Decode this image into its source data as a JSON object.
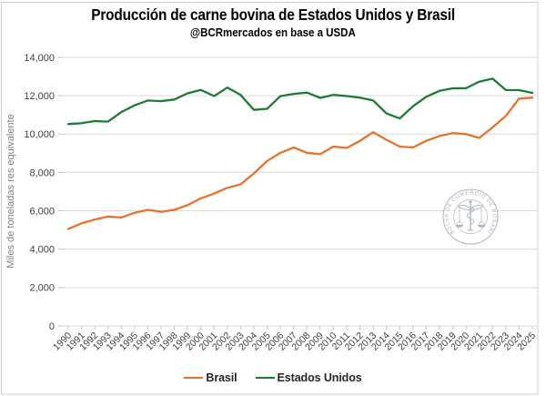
{
  "header": {
    "title": "Producción de carne bovina de Estados Unidos y Brasil",
    "subtitle": "@BCRmercados en base a USDA"
  },
  "watermark": {
    "name": "bolsa-de-comercio-de-rosario-seal",
    "text": "BOLSA DE COMERCIO DE ROSARIO",
    "color": "#9AA3B2"
  },
  "colors": {
    "grid": "#D9D9D9",
    "tick": "#C3C3C3",
    "axis_text": "#404040",
    "ylabel_text": "#7F7F7F",
    "frame_border": "#CBCFD4",
    "legend_text": "#262626"
  },
  "chart_data": {
    "type": "line",
    "title": "Producción de carne bovina de Estados Unidos y Brasil",
    "subtitle": "@BCRmercados en base a USDA",
    "xlabel": "",
    "ylabel": "Miles de toneladas res equivalente",
    "ylim": [
      0,
      14000
    ],
    "ytick_step": 2000,
    "grid": "horizontal-only",
    "legend_position": "bottom-center",
    "x": [
      1990,
      1991,
      1992,
      1993,
      1994,
      1995,
      1996,
      1997,
      1998,
      1999,
      2000,
      2001,
      2002,
      2003,
      2004,
      2005,
      2006,
      2007,
      2008,
      2009,
      2010,
      2011,
      2012,
      2013,
      2014,
      2015,
      2016,
      2017,
      2018,
      2019,
      2020,
      2021,
      2022,
      2023,
      2024,
      2025
    ],
    "series": [
      {
        "name": "Brasil",
        "color": "#E4732C",
        "values": [
          5050,
          5350,
          5550,
          5700,
          5650,
          5900,
          6050,
          5950,
          6050,
          6300,
          6650,
          6900,
          7200,
          7380,
          7950,
          8600,
          9020,
          9300,
          9025,
          8950,
          9350,
          9280,
          9650,
          10100,
          9700,
          9350,
          9300,
          9650,
          9900,
          10050,
          10000,
          9800,
          10350,
          10950,
          11850,
          11900
        ]
      },
      {
        "name": "Estados Unidos",
        "color": "#1F7B34",
        "values": [
          10520,
          10570,
          10680,
          10650,
          11150,
          11500,
          11750,
          11715,
          11805,
          12125,
          12300,
          11985,
          12425,
          12040,
          11260,
          11320,
          11980,
          12095,
          12165,
          11890,
          12045,
          11985,
          11900,
          11750,
          11075,
          10815,
          11450,
          11945,
          12255,
          12385,
          12390,
          12735,
          12890,
          12295,
          12290,
          12150
        ]
      }
    ]
  }
}
